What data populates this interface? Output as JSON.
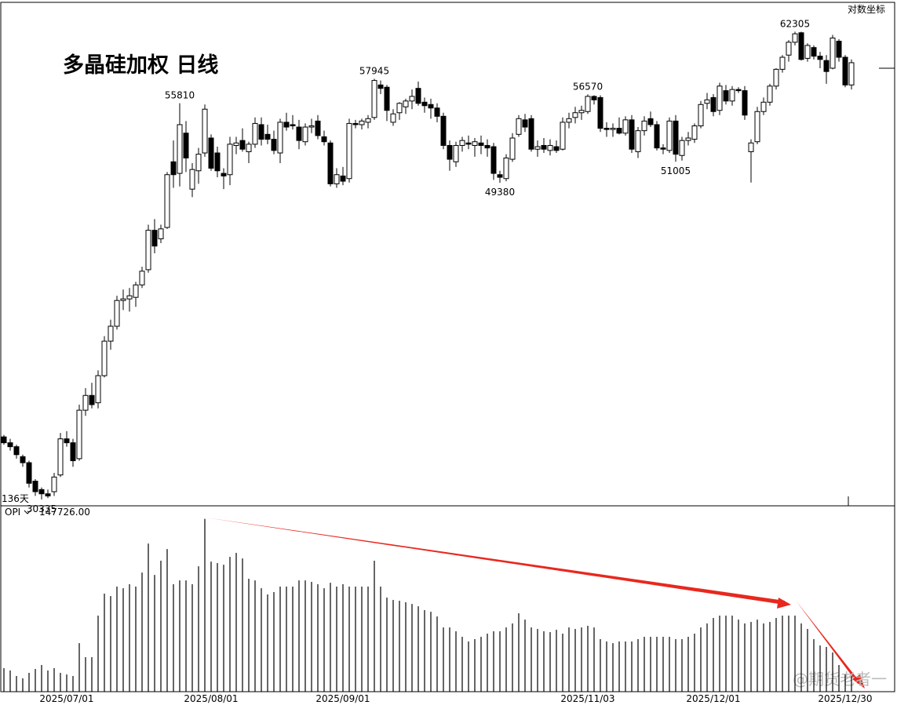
{
  "chart_data": {
    "type": "candlestick",
    "title": "多晶硅加权 日线",
    "scale_label": "对数坐标",
    "period_label": "136天",
    "log_scale": true,
    "categories": [
      null,
      null,
      null,
      null,
      null,
      null,
      null,
      null,
      null,
      null,
      "2025/07/01",
      null,
      null,
      null,
      null,
      null,
      null,
      null,
      null,
      null,
      null,
      null,
      null,
      null,
      null,
      null,
      null,
      null,
      null,
      null,
      null,
      null,
      null,
      "2025/08/01",
      null,
      null,
      null,
      null,
      null,
      null,
      null,
      null,
      null,
      null,
      null,
      null,
      null,
      null,
      null,
      null,
      null,
      null,
      null,
      null,
      "2025/09/01",
      null,
      null,
      null,
      null,
      null,
      null,
      null,
      null,
      null,
      null,
      null,
      null,
      null,
      null,
      null,
      null,
      null,
      null,
      null,
      null,
      null,
      null,
      null,
      null,
      null,
      null,
      null,
      null,
      null,
      null,
      null,
      null,
      null,
      null,
      null,
      null,
      null,
      null,
      "2025/11/03",
      null,
      null,
      null,
      null,
      null,
      null,
      null,
      null,
      null,
      null,
      null,
      null,
      null,
      null,
      null,
      null,
      null,
      null,
      null,
      "2025/12/01",
      null,
      null,
      null,
      null,
      null,
      null,
      null,
      null,
      null,
      null,
      null,
      null,
      null,
      null,
      null,
      null,
      null,
      null,
      null,
      null,
      "2025/12/30",
      null
    ],
    "open": [
      33400,
      33100,
      32900,
      32400,
      32100,
      31200,
      30800,
      30600,
      30700,
      31500,
      33300,
      33100,
      32300,
      34800,
      35600,
      35200,
      36700,
      38700,
      39600,
      41200,
      41300,
      41400,
      42200,
      43200,
      45900,
      45300,
      46100,
      51000,
      50100,
      53300,
      48900,
      50300,
      51700,
      52900,
      51700,
      50100,
      50000,
      52300,
      52700,
      51800,
      52400,
      54000,
      53200,
      52800,
      51700,
      54200,
      54000,
      53800,
      52600,
      53800,
      54300,
      53000,
      52500,
      49300,
      49900,
      49700,
      54100,
      54000,
      54200,
      54600,
      57400,
      57200,
      54200,
      55000,
      55500,
      56000,
      57100,
      55900,
      55700,
      55400,
      54700,
      52300,
      51000,
      52300,
      52500,
      52300,
      52500,
      52300,
      52200,
      50000,
      49700,
      51200,
      53200,
      54400,
      54500,
      52000,
      52300,
      51900,
      52200,
      52000,
      54200,
      54600,
      55000,
      55100,
      56400,
      56300,
      53700,
      53600,
      53700,
      53300,
      54400,
      51800,
      53500,
      54500,
      54000,
      52100,
      51900,
      54300,
      51500,
      52700,
      52800,
      53900,
      55800,
      56300,
      55200,
      56900,
      56000,
      57000,
      56900,
      51800,
      52600,
      55100,
      55900,
      57300,
      58800,
      60100,
      61300,
      62200,
      59800,
      60800,
      60000,
      59600,
      58900,
      61400,
      59900,
      57400
    ],
    "high": [
      33500,
      33300,
      33000,
      32500,
      32200,
      31300,
      30900,
      30800,
      31600,
      33600,
      33700,
      33300,
      35100,
      36000,
      36300,
      37000,
      39000,
      40000,
      41500,
      41900,
      42000,
      42400,
      43400,
      46300,
      46700,
      46300,
      50200,
      52700,
      55810,
      54300,
      50900,
      52100,
      55700,
      53200,
      52200,
      50500,
      53000,
      53000,
      53700,
      52600,
      54600,
      54600,
      54000,
      53500,
      54500,
      55000,
      54800,
      54400,
      54100,
      54500,
      54800,
      53500,
      52700,
      50500,
      50600,
      54500,
      54400,
      54500,
      54800,
      57945,
      57800,
      57400,
      55300,
      55900,
      56200,
      57000,
      57700,
      56300,
      56200,
      55800,
      55000,
      52700,
      52600,
      53000,
      53100,
      52900,
      53100,
      52800,
      52500,
      50300,
      51600,
      53300,
      54800,
      54900,
      54800,
      52700,
      52900,
      52800,
      52700,
      54600,
      55000,
      55500,
      55600,
      56570,
      56500,
      56500,
      54200,
      54100,
      54600,
      54700,
      54800,
      53800,
      54700,
      55100,
      54300,
      52400,
      54600,
      54800,
      53000,
      53400,
      54100,
      56000,
      56700,
      56600,
      57600,
      57400,
      57300,
      57200,
      57300,
      52800,
      55500,
      56300,
      57500,
      58900,
      60100,
      61500,
      62305,
      62300,
      61200,
      61000,
      60400,
      60100,
      62000,
      61600,
      60100,
      59700
    ],
    "low": [
      33000,
      32700,
      32300,
      31900,
      30900,
      30500,
      30335,
      30400,
      30500,
      31400,
      32900,
      31900,
      32200,
      34500,
      34900,
      34900,
      36600,
      38200,
      39400,
      40600,
      40500,
      40800,
      42000,
      43000,
      44300,
      45000,
      46000,
      49000,
      49100,
      50200,
      48300,
      49300,
      51400,
      50300,
      49800,
      48900,
      49200,
      51600,
      51800,
      50900,
      52100,
      52300,
      52400,
      51600,
      50900,
      53500,
      53600,
      52000,
      52300,
      53300,
      52800,
      52300,
      49100,
      49000,
      49200,
      49400,
      53700,
      53600,
      53700,
      54400,
      56600,
      54300,
      53900,
      54400,
      54900,
      55300,
      55600,
      55000,
      54500,
      54200,
      52000,
      50300,
      50600,
      51800,
      52000,
      51400,
      51600,
      51400,
      49600,
      49380,
      49500,
      51000,
      53000,
      53400,
      51800,
      51400,
      51700,
      51500,
      51700,
      51900,
      53700,
      54100,
      54400,
      54900,
      55700,
      53400,
      53000,
      53000,
      53200,
      53100,
      51700,
      51300,
      53100,
      53800,
      51900,
      51600,
      51700,
      51005,
      51100,
      52300,
      52500,
      53700,
      55300,
      54700,
      54800,
      55700,
      55600,
      56700,
      54400,
      49400,
      52400,
      54800,
      55600,
      57000,
      58500,
      59500,
      61000,
      59600,
      59500,
      59700,
      58900,
      57500,
      58800,
      59500,
      57200,
      57000
    ],
    "close": [
      33100,
      32900,
      32500,
      32100,
      31100,
      30700,
      30600,
      30500,
      31400,
      33300,
      33100,
      32200,
      34800,
      35600,
      35100,
      36700,
      38700,
      39600,
      41200,
      41300,
      41500,
      42200,
      43100,
      45900,
      44800,
      46000,
      50000,
      50000,
      54000,
      51300,
      50400,
      51600,
      55300,
      50500,
      50300,
      49900,
      52400,
      52500,
      52000,
      52400,
      54100,
      52800,
      52800,
      51900,
      54200,
      53800,
      53900,
      52700,
      53800,
      53900,
      53100,
      52600,
      49300,
      50000,
      49500,
      54100,
      54000,
      54300,
      54500,
      57800,
      57100,
      55200,
      54900,
      55800,
      56000,
      56400,
      55800,
      55600,
      55400,
      54700,
      52300,
      51200,
      52300,
      52700,
      52400,
      52600,
      52300,
      52100,
      50100,
      49800,
      51300,
      52900,
      54500,
      53800,
      52000,
      52200,
      52000,
      52300,
      51900,
      54200,
      54500,
      55000,
      55200,
      56400,
      56100,
      53700,
      53600,
      53700,
      53300,
      54400,
      52000,
      53500,
      54300,
      54000,
      52100,
      52000,
      54300,
      51600,
      52700,
      52900,
      53900,
      55700,
      56100,
      55100,
      57300,
      56000,
      57000,
      56900,
      54800,
      52500,
      55100,
      55900,
      57300,
      58800,
      59900,
      61300,
      62100,
      59700,
      61000,
      60000,
      59700,
      58600,
      61700,
      59900,
      57400,
      59400
    ],
    "high_labels": [
      null,
      null,
      null,
      null,
      null,
      null,
      null,
      null,
      null,
      null,
      null,
      null,
      null,
      null,
      null,
      null,
      null,
      null,
      null,
      null,
      null,
      null,
      null,
      null,
      null,
      null,
      null,
      null,
      "55810",
      null,
      null,
      null,
      null,
      null,
      null,
      null,
      null,
      null,
      null,
      null,
      null,
      null,
      null,
      null,
      null,
      null,
      null,
      null,
      null,
      null,
      null,
      null,
      null,
      null,
      null,
      null,
      null,
      null,
      null,
      "57945",
      null,
      null,
      null,
      null,
      null,
      null,
      null,
      null,
      null,
      null,
      null,
      null,
      null,
      null,
      null,
      null,
      null,
      null,
      null,
      null,
      null,
      null,
      null,
      null,
      null,
      null,
      null,
      null,
      null,
      null,
      null,
      null,
      null,
      "56570",
      null,
      null,
      null,
      null,
      null,
      null,
      null,
      null,
      null,
      null,
      null,
      null,
      null,
      null,
      null,
      null,
      null,
      null,
      null,
      null,
      null,
      null,
      null,
      null,
      null,
      null,
      null,
      null,
      null,
      null,
      null,
      null,
      "62305",
      null,
      null,
      null,
      null,
      null,
      null,
      null,
      null,
      null
    ],
    "low_labels": [
      null,
      null,
      null,
      null,
      null,
      null,
      "30335",
      null,
      null,
      null,
      null,
      null,
      null,
      null,
      null,
      null,
      null,
      null,
      null,
      null,
      null,
      null,
      null,
      null,
      null,
      null,
      null,
      null,
      null,
      null,
      null,
      null,
      null,
      null,
      null,
      null,
      null,
      null,
      null,
      null,
      null,
      null,
      null,
      null,
      null,
      null,
      null,
      null,
      null,
      null,
      null,
      null,
      null,
      null,
      null,
      null,
      null,
      null,
      null,
      null,
      null,
      null,
      null,
      null,
      null,
      null,
      null,
      null,
      null,
      null,
      null,
      null,
      null,
      null,
      null,
      null,
      null,
      null,
      null,
      "49380",
      null,
      null,
      null,
      null,
      null,
      null,
      null,
      null,
      null,
      null,
      null,
      null,
      null,
      null,
      null,
      null,
      null,
      null,
      null,
      null,
      null,
      null,
      null,
      null,
      null,
      null,
      null,
      "51005",
      null,
      null,
      null,
      null,
      null,
      null,
      null,
      null,
      null,
      null,
      null,
      null,
      null,
      null,
      null,
      null,
      null,
      null,
      null,
      null,
      null,
      null,
      null,
      null,
      null,
      null,
      null,
      null
    ],
    "ylim": [
      30040,
      65180
    ],
    "up_color": "#ffffff",
    "down_color": "#000000",
    "oi_panel": {
      "name": "OPI",
      "value_label": "147726.00",
      "color": "#000000",
      "ylim": [
        0,
        148800
      ],
      "values": [
        20100,
        18100,
        13400,
        11400,
        16100,
        19400,
        22800,
        18100,
        20100,
        16100,
        14700,
        13400,
        41500,
        29500,
        29500,
        65000,
        83800,
        81700,
        89800,
        88400,
        91800,
        89800,
        101800,
        126600,
        99800,
        111900,
        121900,
        91800,
        95100,
        95100,
        91800,
        107200,
        147726,
        111200,
        109900,
        108500,
        115200,
        118600,
        113900,
        96500,
        95100,
        88400,
        83100,
        85100,
        89800,
        89800,
        89800,
        95100,
        95100,
        93800,
        91800,
        88400,
        93100,
        89800,
        91800,
        89800,
        89800,
        89800,
        89800,
        111900,
        89800,
        80400,
        78400,
        77700,
        76400,
        75000,
        73000,
        69700,
        68300,
        64300,
        54900,
        54900,
        51600,
        46900,
        42900,
        44900,
        46900,
        49600,
        51600,
        51600,
        54900,
        58300,
        67000,
        61600,
        54900,
        53600,
        51600,
        50900,
        52900,
        49600,
        54900,
        53600,
        54900,
        56300,
        54900,
        44900,
        42900,
        41500,
        42900,
        42900,
        42900,
        44900,
        46900,
        46900,
        46900,
        46900,
        46900,
        44900,
        44900,
        46900,
        49600,
        54900,
        58300,
        63000,
        65000,
        65000,
        65000,
        61600,
        58300,
        59600,
        61600,
        58300,
        59600,
        63000,
        65000,
        65000,
        65000,
        58300,
        53600,
        44900,
        39500,
        38200,
        33500,
        22800,
        14700,
        13400
      ]
    }
  },
  "watermark": "@期货老者一"
}
